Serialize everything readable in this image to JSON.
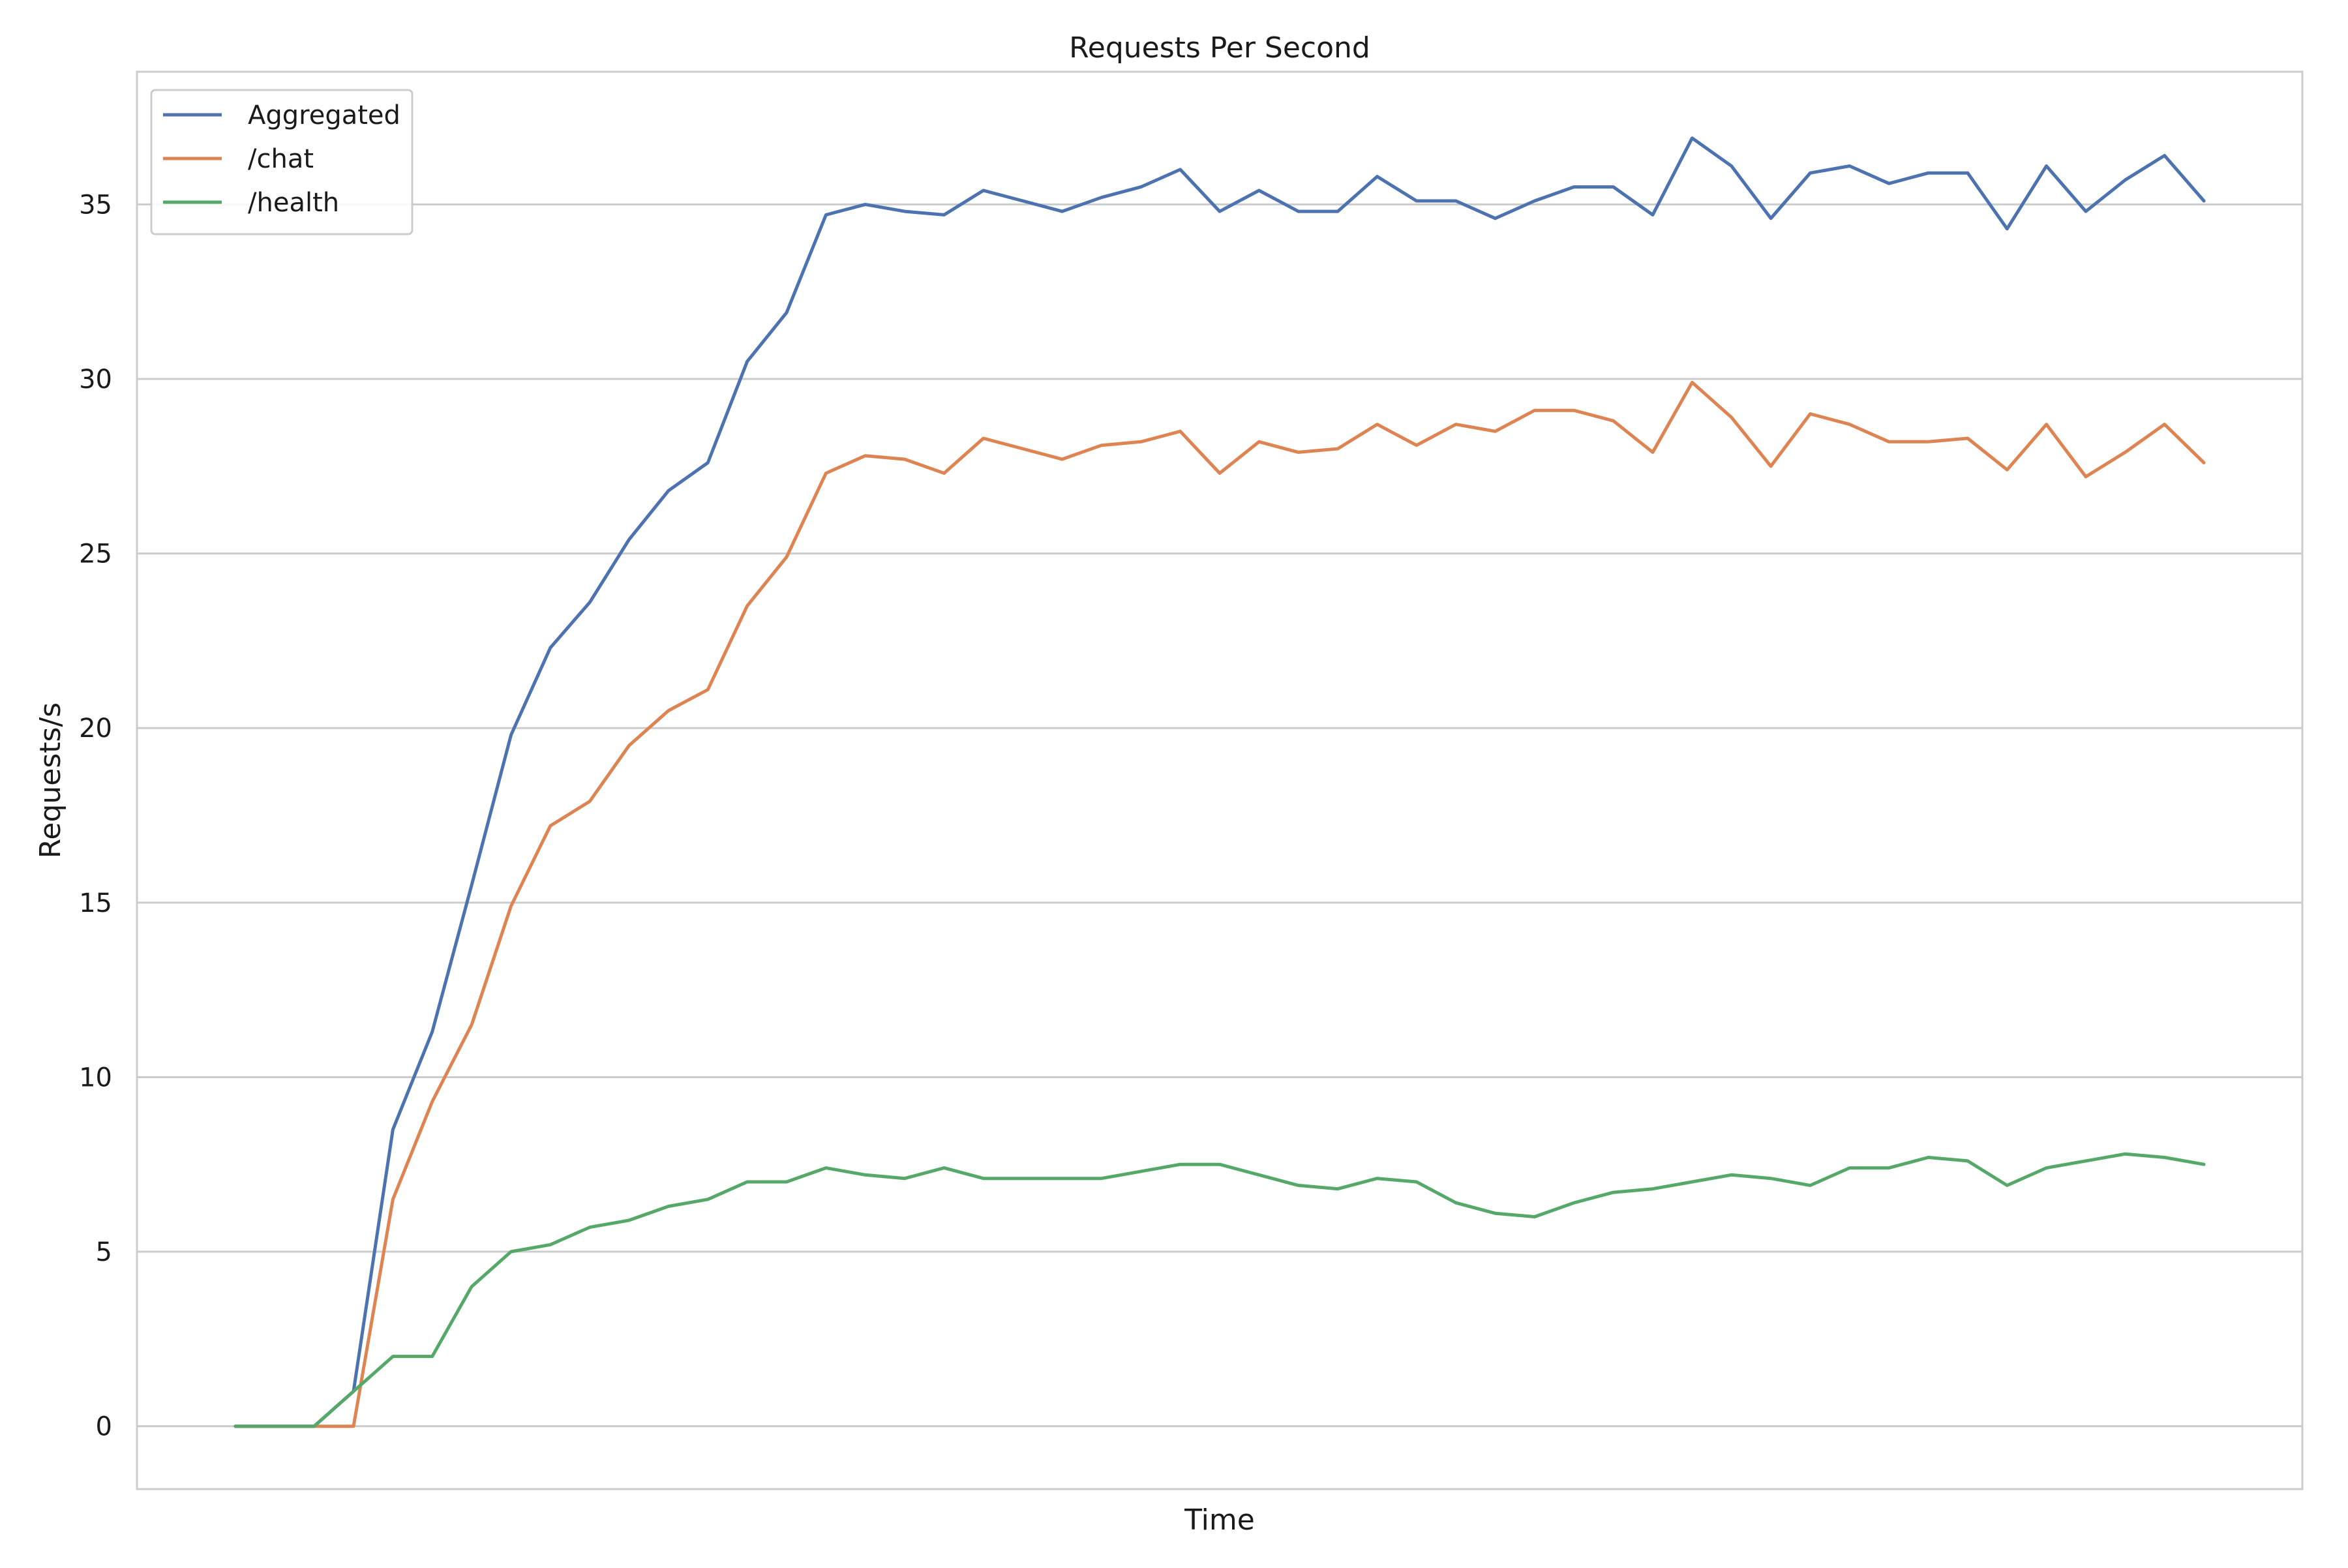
{
  "chart_data": {
    "type": "line",
    "title": "Requests Per Second",
    "xlabel": "Time",
    "ylabel": "Requests/s",
    "ylim": [
      -1.8,
      38.8
    ],
    "yticks": [
      0,
      5,
      10,
      15,
      20,
      25,
      30,
      35
    ],
    "grid": true,
    "legend_position": "top-left",
    "x": [
      0,
      1,
      2,
      3,
      4,
      5,
      6,
      7,
      8,
      9,
      10,
      11,
      12,
      13,
      14,
      15,
      16,
      17,
      18,
      19,
      20,
      21,
      22,
      23,
      24,
      25,
      26,
      27,
      28,
      29,
      30,
      31,
      32,
      33,
      34,
      35,
      36,
      37,
      38,
      39,
      40,
      41,
      42,
      43,
      44,
      45,
      46,
      47,
      48,
      49,
      50
    ],
    "series": [
      {
        "name": "Aggregated",
        "color": "#4c72b0",
        "values": [
          0,
          0,
          0,
          1,
          8.5,
          11.3,
          15.5,
          19.8,
          22.3,
          23.6,
          25.4,
          26.8,
          27.6,
          30.5,
          31.9,
          34.7,
          35.0,
          34.8,
          34.7,
          35.4,
          35.1,
          34.8,
          35.2,
          35.5,
          36.0,
          34.8,
          35.4,
          34.8,
          34.8,
          35.8,
          35.1,
          35.1,
          34.6,
          35.1,
          35.5,
          35.5,
          34.7,
          36.9,
          36.1,
          34.6,
          35.9,
          36.1,
          35.6,
          35.9,
          35.9,
          34.3,
          36.1,
          34.8,
          35.7,
          36.4,
          35.1
        ]
      },
      {
        "name": "/chat",
        "color": "#dd8452",
        "values": [
          0,
          0,
          0,
          0,
          6.5,
          9.3,
          11.5,
          14.9,
          17.2,
          17.9,
          19.5,
          20.5,
          21.1,
          23.5,
          24.9,
          27.3,
          27.8,
          27.7,
          27.3,
          28.3,
          28.0,
          27.7,
          28.1,
          28.2,
          28.5,
          27.3,
          28.2,
          27.9,
          28.0,
          28.7,
          28.1,
          28.7,
          28.5,
          29.1,
          29.1,
          28.8,
          27.9,
          29.9,
          28.9,
          27.5,
          29.0,
          28.7,
          28.2,
          28.2,
          28.3,
          27.4,
          28.7,
          27.2,
          27.9,
          28.7,
          27.6
        ]
      },
      {
        "name": "/health",
        "color": "#55a868",
        "values": [
          0,
          0,
          0,
          1,
          2,
          2,
          4,
          5,
          5.2,
          5.7,
          5.9,
          6.3,
          6.5,
          7.0,
          7.0,
          7.4,
          7.2,
          7.1,
          7.4,
          7.1,
          7.1,
          7.1,
          7.1,
          7.3,
          7.5,
          7.5,
          7.2,
          6.9,
          6.8,
          7.1,
          7.0,
          6.4,
          6.1,
          6.0,
          6.4,
          6.7,
          6.8,
          7.0,
          7.2,
          7.1,
          6.9,
          7.4,
          7.4,
          7.7,
          7.6,
          6.9,
          7.4,
          7.6,
          7.8,
          7.7,
          7.5
        ]
      }
    ]
  }
}
